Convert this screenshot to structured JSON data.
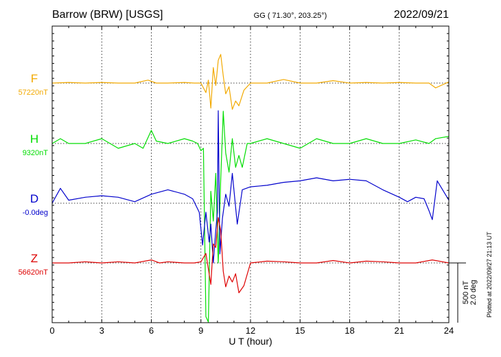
{
  "header": {
    "station": "Barrow (BRW)  [USGS]",
    "coords": "GG ( 71.30°, 203.25°)",
    "date": "2022/09/21"
  },
  "footer": {
    "plotted_at": "Plotted at 2022/09/27 21:13 UT"
  },
  "colors": {
    "F": "#f2a900",
    "H": "#00dd00",
    "D": "#0000cc",
    "Z": "#dd0000",
    "axis": "#000000"
  },
  "chart_data": {
    "type": "line",
    "xlabel": "U T (hour)",
    "x_ticks": [
      "0",
      "3",
      "6",
      "9",
      "12",
      "15",
      "18",
      "21",
      "24"
    ],
    "xlim": [
      0,
      24
    ],
    "grid_x": true,
    "scale_bar": {
      "label1": "500 nT",
      "label2": "2.0 deg",
      "nT": 500,
      "deg": 2.0
    },
    "series": [
      {
        "name": "F",
        "baseline_label": "57220nT",
        "color": "#f2a900",
        "x": [
          0,
          1,
          2,
          3,
          4,
          5,
          5.8,
          6.3,
          7,
          8,
          8.6,
          9.0,
          9.3,
          9.45,
          9.6,
          9.75,
          9.9,
          10.05,
          10.2,
          10.35,
          10.5,
          10.7,
          10.9,
          11.1,
          11.3,
          11.6,
          12,
          13,
          14,
          15,
          16,
          17,
          18,
          19,
          20,
          21,
          22,
          22.8,
          23.2,
          24
        ],
        "y": [
          0,
          5,
          0,
          5,
          0,
          0,
          25,
          0,
          0,
          5,
          0,
          0,
          -80,
          25,
          -210,
          130,
          -20,
          190,
          240,
          60,
          -90,
          -30,
          -220,
          -150,
          -190,
          -60,
          0,
          0,
          30,
          0,
          0,
          20,
          0,
          5,
          0,
          5,
          0,
          0,
          -40,
          10
        ]
      },
      {
        "name": "H",
        "baseline_label": "9320nT",
        "color": "#00dd00",
        "x": [
          0,
          0.5,
          1,
          2,
          3,
          4,
          5,
          5.5,
          6,
          6.3,
          7,
          8,
          8.5,
          8.8,
          9.0,
          9.15,
          9.3,
          9.45,
          9.6,
          9.75,
          9.9,
          10.05,
          10.2,
          10.35,
          10.5,
          10.7,
          10.9,
          11.1,
          11.3,
          11.5,
          11.8,
          12,
          13,
          14,
          15,
          16,
          17,
          18,
          19,
          20,
          21,
          22,
          22.8,
          23.2,
          24
        ],
        "y": [
          0,
          40,
          0,
          0,
          40,
          -40,
          0,
          -40,
          110,
          20,
          0,
          40,
          20,
          0,
          -60,
          -40,
          -1450,
          -1600,
          -400,
          -650,
          -250,
          -1000,
          -300,
          270,
          -80,
          -240,
          40,
          -200,
          -100,
          -200,
          0,
          0,
          40,
          0,
          -40,
          40,
          0,
          0,
          40,
          0,
          0,
          30,
          0,
          40,
          60
        ]
      },
      {
        "name": "D",
        "baseline_label": "-0.0deg",
        "color": "#0000cc",
        "x": [
          0,
          0.5,
          1,
          2,
          3,
          4,
          5,
          6,
          7,
          8,
          8.5,
          8.9,
          9.1,
          9.3,
          9.5,
          9.6,
          9.75,
          9.9,
          10.0,
          10.05,
          10.15,
          10.3,
          10.5,
          10.7,
          10.9,
          11.2,
          11.5,
          12,
          13,
          14,
          15,
          16,
          17,
          18,
          19,
          20,
          21,
          21.5,
          22,
          22.5,
          22.8,
          23,
          23.3,
          24
        ],
        "y": [
          0,
          0.5,
          0.1,
          0.2,
          0.25,
          0.2,
          0.05,
          0.3,
          0.45,
          0.3,
          0.15,
          -0.3,
          -1.4,
          -0.3,
          -1.3,
          -0.7,
          -2.0,
          -0.9,
          -0.3,
          3.1,
          -1.7,
          -0.5,
          0.3,
          -0.1,
          1.0,
          -0.7,
          0.45,
          0.55,
          0.6,
          0.7,
          0.75,
          0.85,
          0.75,
          0.8,
          0.75,
          0.45,
          0.2,
          0.05,
          0.2,
          0.15,
          -0.25,
          -0.55,
          0.75,
          0.1
        ]
      },
      {
        "name": "Z",
        "baseline_label": "56620nT",
        "color": "#dd0000",
        "x": [
          0,
          1,
          2,
          3,
          4,
          5,
          6,
          6.5,
          7,
          8,
          8.6,
          9.0,
          9.3,
          9.45,
          9.6,
          9.75,
          9.9,
          10.05,
          10.2,
          10.35,
          10.5,
          10.7,
          10.9,
          11.1,
          11.3,
          11.6,
          12,
          13,
          14,
          15,
          16,
          17,
          18,
          19,
          20,
          21,
          22,
          23,
          24
        ],
        "y": [
          0,
          0,
          10,
          0,
          10,
          0,
          25,
          0,
          10,
          0,
          0,
          10,
          80,
          -50,
          -180,
          160,
          130,
          380,
          270,
          -70,
          -200,
          -110,
          -160,
          -90,
          -250,
          -190,
          0,
          15,
          10,
          0,
          0,
          20,
          0,
          15,
          10,
          0,
          0,
          25,
          0
        ]
      }
    ]
  }
}
